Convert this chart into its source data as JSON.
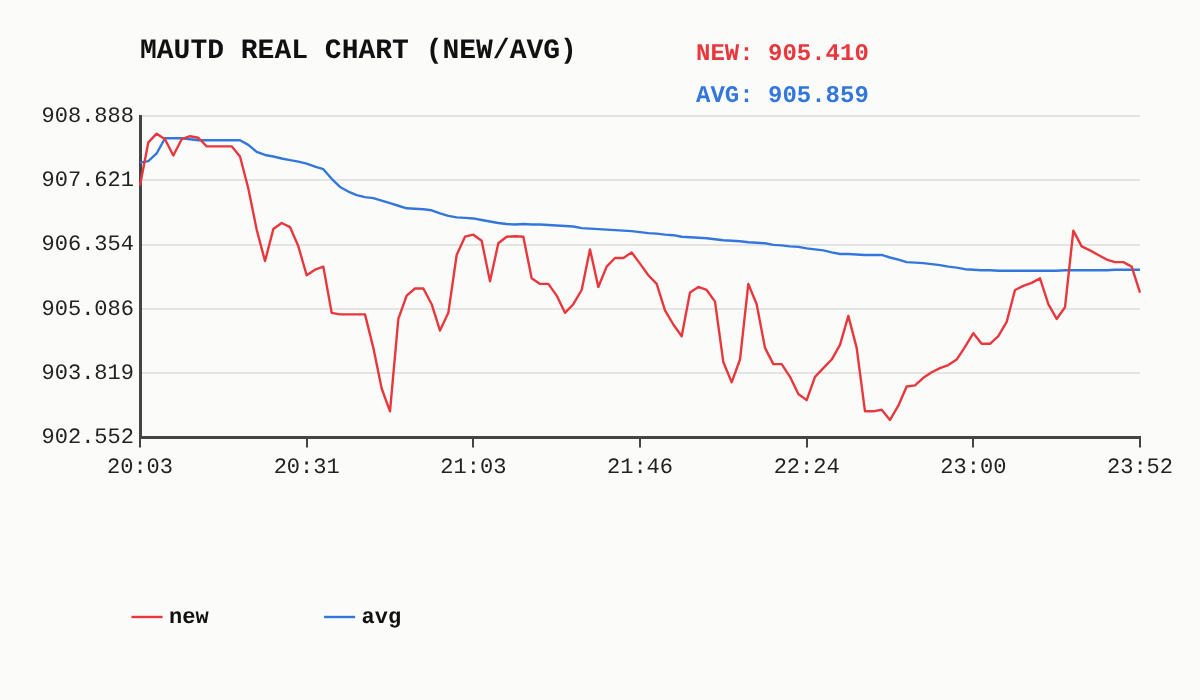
{
  "chart_data": {
    "type": "line",
    "title": "MAUTD REAL CHART (NEW/AVG)",
    "annotations": [
      "NEW: 905.410",
      "AVG: 905.859"
    ],
    "categories": [
      "20:03",
      null,
      null,
      null,
      null,
      null,
      null,
      null,
      null,
      null,
      null,
      null,
      null,
      null,
      null,
      null,
      null,
      null,
      null,
      null,
      "20:31",
      null,
      null,
      null,
      null,
      null,
      null,
      null,
      null,
      null,
      null,
      null,
      null,
      null,
      null,
      null,
      null,
      null,
      null,
      null,
      "21:03",
      null,
      null,
      null,
      null,
      null,
      null,
      null,
      null,
      null,
      null,
      null,
      null,
      null,
      null,
      null,
      null,
      null,
      null,
      null,
      "21:46",
      null,
      null,
      null,
      null,
      null,
      null,
      null,
      null,
      null,
      null,
      null,
      null,
      null,
      null,
      null,
      null,
      null,
      null,
      null,
      "22:24",
      null,
      null,
      null,
      null,
      null,
      null,
      null,
      null,
      null,
      null,
      null,
      null,
      null,
      null,
      null,
      null,
      null,
      null,
      null,
      "23:00",
      null,
      null,
      null,
      null,
      null,
      null,
      null,
      null,
      null,
      null,
      null,
      null,
      null,
      null,
      null,
      null,
      null,
      null,
      null,
      "23:52"
    ],
    "series": [
      {
        "name": "new",
        "color": "#e8383d",
        "values": [
          907.52,
          908.37,
          908.54,
          908.43,
          908.11,
          908.43,
          908.49,
          908.46,
          908.29,
          908.29,
          908.29,
          908.29,
          908.09,
          907.46,
          906.65,
          906.03,
          906.66,
          906.78,
          906.7,
          906.32,
          905.75,
          905.86,
          905.92,
          905.01,
          904.98,
          904.98,
          904.98,
          904.98,
          904.32,
          903.52,
          903.07,
          904.89,
          905.35,
          905.49,
          905.49,
          905.18,
          904.66,
          905.01,
          906.15,
          906.51,
          906.55,
          906.43,
          905.63,
          906.38,
          906.51,
          906.52,
          906.51,
          905.69,
          905.58,
          905.58,
          905.35,
          905.01,
          905.18,
          905.46,
          906.26,
          905.52,
          905.92,
          906.09,
          906.09,
          906.2,
          905.98,
          905.75,
          905.58,
          905.06,
          904.78,
          904.55,
          905.41,
          905.52,
          905.46,
          905.23,
          904.04,
          903.64,
          904.09,
          905.58,
          905.18,
          904.32,
          904.0,
          904.0,
          903.75,
          903.41,
          903.29,
          903.75,
          903.92,
          904.09,
          904.38,
          904.95,
          904.32,
          903.07,
          903.07,
          903.1,
          902.9,
          903.18,
          903.56,
          903.58,
          903.73,
          903.84,
          903.92,
          903.98,
          904.09,
          904.34,
          904.61,
          904.4,
          904.4,
          904.55,
          904.83,
          905.46,
          905.54,
          905.6,
          905.69,
          905.18,
          904.89,
          905.12,
          906.63,
          906.32,
          906.24,
          906.15,
          906.06,
          906.01,
          906.01,
          905.92,
          905.41
        ]
      },
      {
        "name": "avg",
        "color": "#3377dd",
        "values": [
          907.97,
          908.0,
          908.15,
          908.45,
          908.45,
          908.45,
          908.43,
          908.41,
          908.41,
          908.41,
          908.41,
          908.41,
          908.41,
          908.32,
          908.18,
          908.12,
          908.09,
          908.05,
          908.02,
          907.99,
          907.95,
          907.89,
          907.84,
          907.65,
          907.49,
          907.4,
          907.33,
          907.29,
          907.27,
          907.22,
          907.17,
          907.12,
          907.07,
          907.06,
          907.05,
          907.03,
          906.97,
          906.92,
          906.89,
          906.88,
          906.87,
          906.84,
          906.81,
          906.78,
          906.76,
          906.75,
          906.76,
          906.75,
          906.75,
          906.74,
          906.73,
          906.72,
          906.71,
          906.68,
          906.67,
          906.66,
          906.65,
          906.64,
          906.63,
          906.62,
          906.6,
          906.58,
          906.57,
          906.55,
          906.54,
          906.51,
          906.5,
          906.49,
          906.48,
          906.46,
          906.44,
          906.43,
          906.42,
          906.4,
          906.39,
          906.38,
          906.35,
          906.34,
          906.32,
          906.31,
          906.28,
          906.26,
          906.24,
          906.2,
          906.17,
          906.17,
          906.16,
          906.15,
          906.15,
          906.15,
          906.1,
          906.06,
          906.01,
          906.0,
          905.99,
          905.97,
          905.95,
          905.92,
          905.9,
          905.87,
          905.86,
          905.85,
          905.85,
          905.84,
          905.84,
          905.84,
          905.84,
          905.84,
          905.84,
          905.84,
          905.84,
          905.85,
          905.85,
          905.85,
          905.85,
          905.85,
          905.85,
          905.86,
          905.86,
          905.86,
          905.86
        ]
      }
    ],
    "ylim": [
      902.552,
      908.888
    ],
    "yticks": [
      902.552,
      903.819,
      905.086,
      906.354,
      907.621,
      908.888
    ],
    "grid": "y",
    "legend": "bottom",
    "marker": "none",
    "line_style": "solid"
  }
}
